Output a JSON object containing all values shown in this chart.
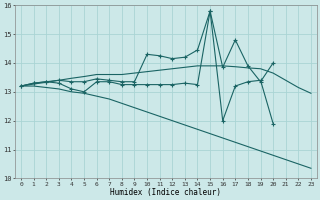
{
  "xlabel": "Humidex (Indice chaleur)",
  "background_color": "#cce8e8",
  "grid_color": "#aad4d4",
  "line_color": "#1a6464",
  "xlim": [
    -0.5,
    23.5
  ],
  "ylim": [
    10,
    16
  ],
  "xticks": [
    0,
    1,
    2,
    3,
    4,
    5,
    6,
    7,
    8,
    9,
    10,
    11,
    12,
    13,
    14,
    15,
    16,
    17,
    18,
    19,
    20,
    21,
    22,
    23
  ],
  "yticks": [
    10,
    11,
    12,
    13,
    14,
    15,
    16
  ],
  "series": [
    {
      "x": [
        0,
        1,
        2,
        3,
        4,
        5,
        6,
        7,
        8,
        9,
        10,
        11,
        12,
        13,
        14,
        15,
        16,
        17,
        18,
        19,
        20
      ],
      "y": [
        13.2,
        13.3,
        13.35,
        13.3,
        13.1,
        13.0,
        13.35,
        13.35,
        13.25,
        13.25,
        13.25,
        13.25,
        13.25,
        13.3,
        13.25,
        15.8,
        12.0,
        13.2,
        13.35,
        13.4,
        11.9
      ],
      "marker": "+"
    },
    {
      "x": [
        0,
        1,
        2,
        3,
        4,
        5,
        6,
        7,
        8,
        9,
        10,
        11,
        12,
        13,
        14,
        15,
        16,
        17,
        18,
        19,
        20
      ],
      "y": [
        13.2,
        13.3,
        13.35,
        13.4,
        13.35,
        13.35,
        13.45,
        13.4,
        13.35,
        13.35,
        14.3,
        14.25,
        14.15,
        14.2,
        14.45,
        15.8,
        13.85,
        14.8,
        13.9,
        13.35,
        14.0
      ],
      "marker": "+"
    },
    {
      "x": [
        0,
        1,
        2,
        3,
        4,
        5,
        6,
        7,
        8,
        9,
        10,
        11,
        12,
        13,
        14,
        15,
        16,
        17,
        18,
        19,
        20,
        21,
        22,
        23
      ],
      "y": [
        13.2,
        13.27,
        13.33,
        13.4,
        13.47,
        13.53,
        13.6,
        13.6,
        13.6,
        13.65,
        13.7,
        13.75,
        13.8,
        13.85,
        13.9,
        13.9,
        13.9,
        13.87,
        13.83,
        13.8,
        13.65,
        13.4,
        13.15,
        12.95
      ],
      "marker": null
    },
    {
      "x": [
        0,
        1,
        2,
        3,
        4,
        5,
        6,
        7,
        8,
        9,
        10,
        11,
        12,
        13,
        14,
        15,
        16,
        17,
        18,
        19,
        20,
        21,
        22,
        23
      ],
      "y": [
        13.2,
        13.2,
        13.15,
        13.1,
        13.0,
        12.95,
        12.85,
        12.75,
        12.6,
        12.45,
        12.3,
        12.15,
        12.0,
        11.85,
        11.7,
        11.55,
        11.4,
        11.25,
        11.1,
        10.95,
        10.8,
        10.65,
        10.5,
        10.35
      ],
      "marker": null
    }
  ]
}
